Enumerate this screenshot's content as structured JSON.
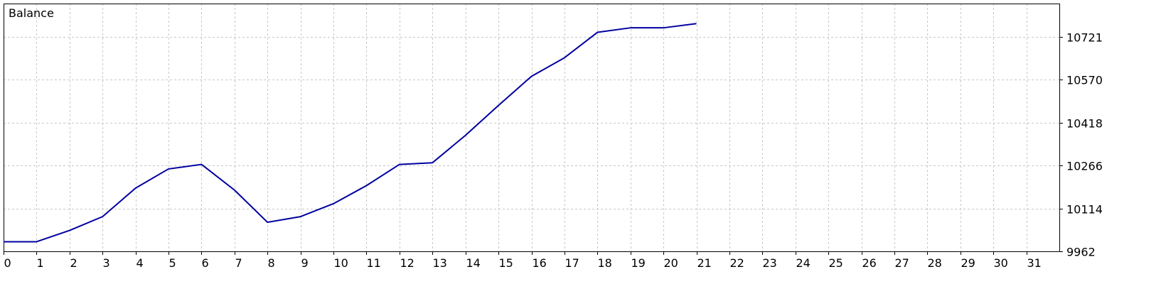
{
  "chart_data": {
    "type": "line",
    "legend": "Balance",
    "x": [
      0,
      1,
      2,
      3,
      4,
      5,
      6,
      7,
      8,
      9,
      10,
      11,
      12,
      13,
      14,
      15,
      16,
      17,
      18,
      19,
      20,
      21
    ],
    "x_ticks": [
      0,
      1,
      2,
      3,
      4,
      5,
      6,
      7,
      8,
      9,
      10,
      11,
      12,
      13,
      14,
      15,
      16,
      17,
      18,
      19,
      20,
      21,
      22,
      23,
      24,
      25,
      26,
      27,
      28,
      29,
      30,
      31
    ],
    "xlim": [
      0,
      32
    ],
    "y_ticks": [
      9962,
      10114,
      10266,
      10418,
      10570,
      10721
    ],
    "ylim": [
      9962,
      10840
    ],
    "series": [
      {
        "name": "Balance",
        "values": [
          9996,
          9996,
          10036,
          10085,
          10186,
          10254,
          10270,
          10179,
          10065,
          10085,
          10131,
          10195,
          10270,
          10276,
          10373,
          10479,
          10582,
          10648,
          10738,
          10754,
          10754,
          10769
        ]
      }
    ],
    "grid": true,
    "y_axis_position": "right",
    "legend_position": "top-left",
    "colors": {
      "line": "#0000a0",
      "grid": "#c8c8c8",
      "axis": "#000000"
    }
  }
}
